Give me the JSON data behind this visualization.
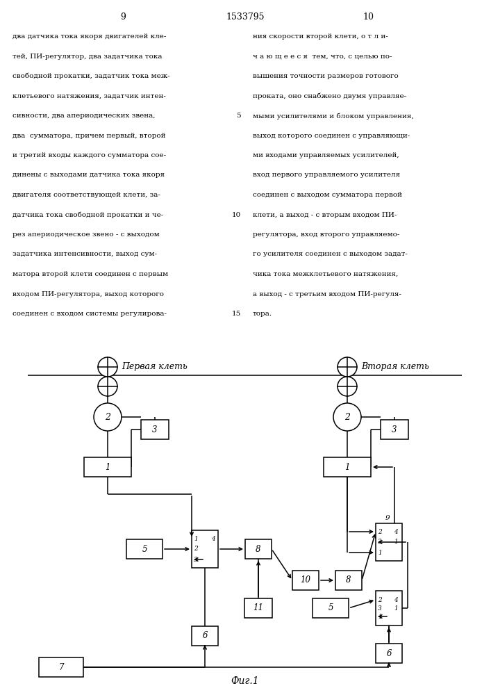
{
  "page_left": "9",
  "page_center": "1533795",
  "page_right": "10",
  "text_left": "два датчика тока якоря двигателей кле-\nтей, ПИ-регулятор, два задатчика тока\nсвободной прокатки, задатчик тока меж-\nклетьевого натяжения, задатчик интен-\nсивности, два апериодических звена,\nдва  сумматора, причем первый, второй\nи третий входы каждого сумматора сое-\nдинены с выходами датчика тока якоря\nдвигателя соответствующей клети, за-\nдатчика тока свободной прокатки и че-\nрез апериодическое звено - с выходом\nзадатчика интенсивности, выход сум-\nматора второй клети соединен с первым\nвходом ПИ-регулятора, выход которого\nсоединен с входом системы регулирова-",
  "text_right": "ния скорости второй клети, о т л и-\nч а ю щ е е с я  тем, что, с целью по-\nвышения точности размеров готового\nпроката, оно снабжено двумя управляе-\nмыми усилителями и блоком управления,\nвыход которого соединен с управляющи-\nми входами управляемых усилителей,\nвход первого управляемого усилителя\nсоединен с выходом сумматора первой\nклети, а выход - с вторым входом ПИ-\nрегулятора, вход второго управляемо-\nго усилителя соединен с выходом задат-\nчика тока межклетьевого натяжения,\nа выход - с третьим входом ПИ-регуля-\nтора.",
  "line_num_5": "5",
  "line_num_10": "10",
  "line_num_15": "15",
  "fig_label": "Фиг.1",
  "label_pervaya": "Первая клеть",
  "label_vtoraya": "Вторая клеть"
}
